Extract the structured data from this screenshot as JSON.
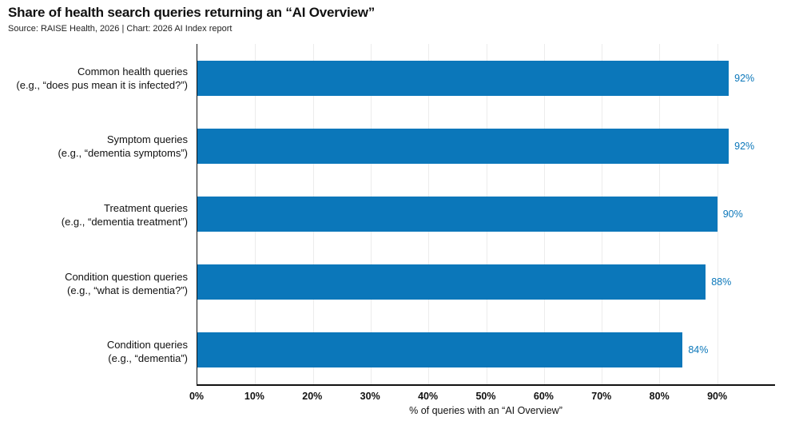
{
  "title": "Share of health search queries returning an “AI Overview”",
  "source": "Source: RAISE Health, 2026 | Chart: 2026 AI Index report",
  "colors": {
    "bar": "#0b77ba",
    "value_label": "#0b77ba",
    "gridline": "#ececec",
    "axis": "#111111"
  },
  "chart_data": {
    "type": "bar",
    "orientation": "horizontal",
    "title": "Share of health search queries returning an “AI Overview”",
    "xlabel": "% of queries with an “AI Overview”",
    "xlim": [
      0,
      100
    ],
    "grid": true,
    "categories": [
      {
        "label": "Common health queries",
        "example": "(e.g., “does pus mean it is infected?”)"
      },
      {
        "label": "Symptom queries",
        "example": "(e.g., “dementia symptoms”)"
      },
      {
        "label": "Treatment queries",
        "example": "(e.g., “dementia treatment”)"
      },
      {
        "label": "Condition question queries",
        "example": "(e.g., “what is dementia?”)"
      },
      {
        "label": "Condition queries",
        "example": "(e.g., “dementia”)"
      }
    ],
    "values": [
      92,
      92,
      90,
      88,
      84
    ],
    "value_labels": [
      "92%",
      "92%",
      "90%",
      "88%",
      "84%"
    ],
    "xtick_values": [
      0,
      10,
      20,
      30,
      40,
      50,
      60,
      70,
      80,
      90
    ],
    "xticks": [
      "0%",
      "10%",
      "20%",
      "30%",
      "40%",
      "50%",
      "60%",
      "70%",
      "80%",
      "90%"
    ]
  }
}
